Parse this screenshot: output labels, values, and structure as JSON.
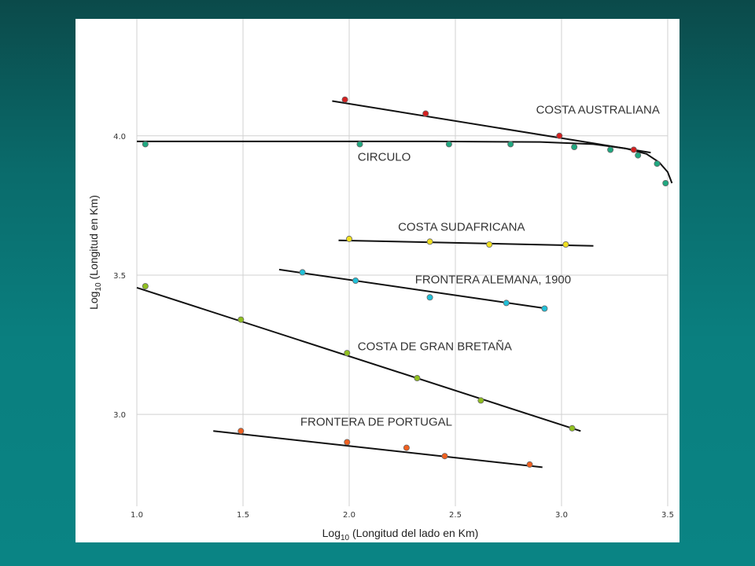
{
  "chart_data": {
    "type": "scatter",
    "title": "",
    "xlabel": {
      "prefix": "Log",
      "sub": "10",
      "rest": " (Longitud del lado en Km)"
    },
    "ylabel": {
      "prefix": "Log",
      "sub": "10",
      "rest": " (Longitud en Km)"
    },
    "xlim": [
      1.0,
      3.5
    ],
    "ylim": [
      2.67,
      4.42
    ],
    "grid": true,
    "x_ticks": [
      {
        "value": 1.0,
        "label": "1.0"
      },
      {
        "value": 1.5,
        "label": "1.5"
      },
      {
        "value": 2.0,
        "label": "2.0"
      },
      {
        "value": 2.5,
        "label": "2.5"
      },
      {
        "value": 3.0,
        "label": "3.0"
      },
      {
        "value": 3.5,
        "label": "3.5"
      }
    ],
    "y_ticks": [
      {
        "value": 3.0,
        "label": "3.0"
      },
      {
        "value": 3.5,
        "label": "3.5"
      },
      {
        "value": 4.0,
        "label": "4.0"
      }
    ],
    "series": [
      {
        "name": "COSTA AUSTRALIANA",
        "color": "#d42020",
        "label_at": [
          1.88,
          4.08
        ],
        "points": [
          [
            1.98,
            4.13
          ],
          [
            2.36,
            4.08
          ],
          [
            2.99,
            4.0
          ],
          [
            3.34,
            3.95
          ]
        ],
        "fit": [
          [
            1.92,
            4.125
          ],
          [
            3.42,
            3.94
          ]
        ]
      },
      {
        "name": "CIRCULO",
        "color": "#20a880",
        "label_at": [
          1.04,
          3.91
        ],
        "points": [
          [
            1.04,
            3.97
          ],
          [
            2.05,
            3.97
          ],
          [
            2.47,
            3.97
          ],
          [
            2.76,
            3.97
          ],
          [
            3.06,
            3.96
          ],
          [
            3.23,
            3.95
          ],
          [
            3.36,
            3.93
          ],
          [
            3.45,
            3.9
          ],
          [
            3.49,
            3.83
          ]
        ],
        "fit": [
          [
            1.0,
            3.98
          ],
          [
            2.4,
            3.98
          ],
          [
            2.9,
            3.978
          ],
          [
            3.15,
            3.97
          ],
          [
            3.3,
            3.955
          ],
          [
            3.4,
            3.935
          ],
          [
            3.46,
            3.905
          ],
          [
            3.5,
            3.87
          ],
          [
            3.52,
            3.83
          ]
        ]
      },
      {
        "name": "COSTA SUDAFRICANA",
        "color": "#f0e020",
        "label_at": [
          1.23,
          3.66
        ],
        "points": [
          [
            2.0,
            3.63
          ],
          [
            2.38,
            3.62
          ],
          [
            2.66,
            3.61
          ],
          [
            3.02,
            3.61
          ]
        ],
        "fit": [
          [
            1.95,
            3.625
          ],
          [
            3.15,
            3.605
          ]
        ]
      },
      {
        "name": "FRONTERA ALEMANA, 1900",
        "color": "#20c0d8",
        "label_at": [
          1.31,
          3.47
        ],
        "points": [
          [
            1.78,
            3.51
          ],
          [
            2.03,
            3.48
          ],
          [
            2.38,
            3.42
          ],
          [
            2.74,
            3.4
          ],
          [
            2.92,
            3.38
          ]
        ],
        "fit": [
          [
            1.67,
            3.52
          ],
          [
            2.93,
            3.38
          ]
        ]
      },
      {
        "name": "COSTA DE GRAN BRETAÑA",
        "color": "#90c020",
        "label_at": [
          1.04,
          3.23
        ],
        "points": [
          [
            1.04,
            3.46
          ],
          [
            1.49,
            3.34
          ],
          [
            1.99,
            3.22
          ],
          [
            2.32,
            3.13
          ],
          [
            2.62,
            3.05
          ],
          [
            3.05,
            2.95
          ]
        ],
        "fit": [
          [
            1.0,
            3.455
          ],
          [
            3.09,
            2.94
          ]
        ]
      },
      {
        "name": "FRONTERA DE PORTUGAL",
        "color": "#f06020",
        "label_at": [
          0.77,
          2.96
        ],
        "points": [
          [
            1.49,
            2.94
          ],
          [
            1.99,
            2.9
          ],
          [
            2.27,
            2.88
          ],
          [
            2.45,
            2.85
          ],
          [
            2.85,
            2.82
          ]
        ],
        "fit": [
          [
            1.36,
            2.94
          ],
          [
            2.91,
            2.81
          ]
        ]
      }
    ]
  }
}
